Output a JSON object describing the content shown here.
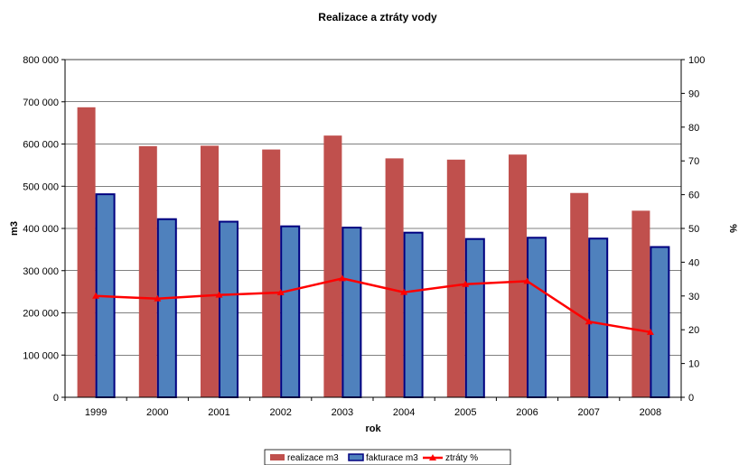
{
  "chart_data": {
    "type": "bar",
    "title": "Realizace a ztráty vody",
    "xlabel": "rok",
    "ylabel": "m3",
    "y2label": "%",
    "categories": [
      "1999",
      "2000",
      "2001",
      "2002",
      "2003",
      "2004",
      "2005",
      "2006",
      "2007",
      "2008"
    ],
    "ylim": [
      0,
      800000
    ],
    "yticks": [
      "0",
      "100 000",
      "200 000",
      "300 000",
      "400 000",
      "500 000",
      "600 000",
      "700 000",
      "800 000"
    ],
    "y2lim": [
      0,
      100
    ],
    "y2ticks": [
      "0",
      "10",
      "20",
      "30",
      "40",
      "50",
      "60",
      "70",
      "80",
      "90",
      "100"
    ],
    "grid": true,
    "legend_position": "bottom",
    "series": [
      {
        "name": "realizace m3",
        "type": "bar",
        "axis": "left",
        "color": "#C0504D",
        "values": [
          687000,
          595000,
          596000,
          587000,
          620000,
          566000,
          563000,
          575000,
          484000,
          442000
        ]
      },
      {
        "name": "fakturace m3",
        "type": "bar",
        "axis": "left",
        "color": "#4F81BD",
        "border_color": "#000080",
        "values": [
          481000,
          422000,
          416000,
          405000,
          402000,
          390000,
          375000,
          378000,
          376000,
          356000
        ]
      },
      {
        "name": "ztráty %",
        "type": "line",
        "axis": "right",
        "color": "#FF0000",
        "values": [
          30.0,
          29.2,
          30.3,
          31.0,
          35.2,
          31.1,
          33.5,
          34.4,
          22.4,
          19.3
        ]
      }
    ]
  }
}
